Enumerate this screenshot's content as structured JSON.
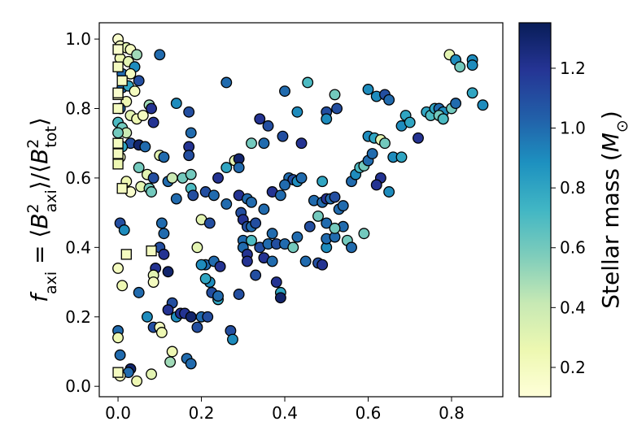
{
  "chart_data": {
    "type": "scatter",
    "ylabel": [
      {
        "text": "f",
        "style": "italic"
      },
      {
        "text": "axi",
        "pos": "sub"
      },
      {
        "text": " = ⟨"
      },
      {
        "text": "B",
        "style": "italic"
      },
      {
        "text": "2",
        "pos": "sup"
      },
      {
        "text": "axi",
        "pos": "sub"
      },
      {
        "text": "⟩/⟨"
      },
      {
        "text": "B",
        "style": "italic"
      },
      {
        "text": "2",
        "pos": "sup"
      },
      {
        "text": "tot",
        "pos": "sub"
      },
      {
        "text": "⟩"
      }
    ],
    "colorbar_label": [
      {
        "text": "Stellar mass ("
      },
      {
        "text": "M",
        "style": "italic"
      },
      {
        "text": "⊙",
        "pos": "sub"
      },
      {
        "text": ")"
      }
    ],
    "xlim": [
      -0.045,
      0.923
    ],
    "ylim": [
      -0.03,
      1.047
    ],
    "xticks": [
      {
        "value": 0,
        "label": "0.0"
      },
      0.2,
      0.4,
      0.6,
      0.8
    ],
    "yticks": [
      {
        "value": 0,
        "label": "0.0"
      },
      0.2,
      0.4,
      0.6,
      0.8,
      {
        "value": 1,
        "label": "1.0"
      }
    ],
    "clim": [
      0.102,
      1.352
    ],
    "cticks": [
      0.2,
      0.4,
      0.6,
      0.8,
      {
        "value": 1,
        "label": "1.0"
      },
      1.2
    ],
    "colormap": [
      "#ffffd9",
      "#edf8b1",
      "#c7e9b4",
      "#7fcdbb",
      "#41b6c4",
      "#1d91c0",
      "#225ea8",
      "#253494",
      "#081d58"
    ],
    "series": [
      {
        "marker": "circle",
        "x": [
          0.0,
          0.005,
          0.02,
          0.03,
          0.045,
          0.005,
          0.025,
          0.04,
          0.01,
          0.03,
          0.05,
          0.01,
          0.025,
          0.04,
          0.02,
          0.005,
          0.03,
          0.045,
          0.0,
          0.01,
          0.02,
          0.0,
          0.03,
          0.05,
          0.065,
          0.01,
          0.005,
          0.05,
          0.07,
          0.02,
          0.055,
          0.075,
          0.03,
          0.005,
          0.015,
          0.0,
          0.01,
          0.05,
          0.0,
          0.0,
          0.005,
          0.03,
          0.025,
          0.005,
          0.045,
          0.08,
          0.06,
          0.075,
          0.08,
          0.1,
          0.085,
          0.1,
          0.11,
          0.085,
          0.08,
          0.14,
          0.17,
          0.175,
          0.17,
          0.17,
          0.12,
          0.13,
          0.155,
          0.175,
          0.14,
          0.175,
          0.18,
          0.2,
          0.105,
          0.11,
          0.1,
          0.11,
          0.09,
          0.12,
          0.19,
          0.085,
          0.085,
          0.13,
          0.12,
          0.14,
          0.15,
          0.16,
          0.07,
          0.085,
          0.1,
          0.105,
          0.13,
          0.125,
          0.165,
          0.175,
          0.175,
          0.2,
          0.19,
          0.26,
          0.21,
          0.23,
          0.24,
          0.26,
          0.28,
          0.29,
          0.29,
          0.29,
          0.31,
          0.32,
          0.32,
          0.35,
          0.34,
          0.36,
          0.395,
          0.4,
          0.43,
          0.44,
          0.455,
          0.26,
          0.295,
          0.3,
          0.31,
          0.32,
          0.33,
          0.35,
          0.37,
          0.39,
          0.41,
          0.42,
          0.43,
          0.44,
          0.4,
          0.22,
          0.3,
          0.3,
          0.32,
          0.34,
          0.35,
          0.36,
          0.37,
          0.38,
          0.4,
          0.42,
          0.43,
          0.33,
          0.31,
          0.31,
          0.37,
          0.39,
          0.39,
          0.38,
          0.29,
          0.24,
          0.21,
          0.23,
          0.245,
          0.22,
          0.21,
          0.225,
          0.24,
          0.215,
          0.27,
          0.275,
          0.2,
          0.5,
          0.5,
          0.52,
          0.525,
          0.47,
          0.48,
          0.49,
          0.5,
          0.51,
          0.52,
          0.53,
          0.54,
          0.56,
          0.57,
          0.58,
          0.59,
          0.6,
          0.61,
          0.6,
          0.615,
          0.63,
          0.64,
          0.63,
          0.62,
          0.65,
          0.66,
          0.68,
          0.68,
          0.69,
          0.7,
          0.6,
          0.62,
          0.64,
          0.65,
          0.72,
          0.74,
          0.75,
          0.76,
          0.77,
          0.78,
          0.77,
          0.78,
          0.8,
          0.81,
          0.795,
          0.81,
          0.82,
          0.85,
          0.85,
          0.85,
          0.875,
          0.78,
          0.45,
          0.48,
          0.49,
          0.5,
          0.5,
          0.52,
          0.54,
          0.55,
          0.56,
          0.59,
          0.5,
          0.52,
          0.49,
          0.46
        ],
        "y": [
          1.0,
          0.98,
          0.975,
          0.97,
          0.955,
          0.945,
          0.935,
          0.92,
          0.9,
          0.9,
          0.88,
          0.86,
          0.865,
          0.85,
          0.82,
          0.8,
          0.78,
          0.77,
          0.76,
          0.745,
          0.73,
          0.73,
          0.7,
          0.695,
          0.69,
          0.69,
          0.66,
          0.63,
          0.61,
          0.59,
          0.575,
          0.57,
          0.56,
          0.47,
          0.45,
          0.34,
          0.29,
          0.27,
          0.16,
          0.14,
          0.09,
          0.05,
          0.04,
          0.03,
          0.015,
          0.035,
          0.78,
          0.81,
          0.8,
          0.955,
          0.76,
          0.665,
          0.66,
          0.6,
          0.56,
          0.815,
          0.79,
          0.73,
          0.69,
          0.665,
          0.59,
          0.6,
          0.6,
          0.61,
          0.54,
          0.57,
          0.55,
          0.48,
          0.47,
          0.44,
          0.4,
          0.38,
          0.34,
          0.33,
          0.4,
          0.32,
          0.3,
          0.24,
          0.22,
          0.2,
          0.21,
          0.21,
          0.2,
          0.17,
          0.17,
          0.155,
          0.1,
          0.07,
          0.08,
          0.065,
          0.2,
          0.2,
          0.17,
          0.875,
          0.56,
          0.55,
          0.6,
          0.63,
          0.65,
          0.655,
          0.63,
          0.55,
          0.54,
          0.53,
          0.7,
          0.7,
          0.77,
          0.75,
          0.72,
          0.85,
          0.79,
          0.7,
          0.875,
          0.525,
          0.5,
          0.48,
          0.46,
          0.46,
          0.47,
          0.51,
          0.56,
          0.55,
          0.6,
          0.595,
          0.59,
          0.6,
          0.58,
          0.47,
          0.42,
          0.4,
          0.42,
          0.4,
          0.37,
          0.41,
          0.44,
          0.41,
          0.41,
          0.4,
          0.43,
          0.32,
          0.38,
          0.36,
          0.36,
          0.27,
          0.255,
          0.3,
          0.265,
          0.25,
          0.35,
          0.36,
          0.345,
          0.3,
          0.31,
          0.27,
          0.26,
          0.2,
          0.16,
          0.135,
          0.35,
          0.79,
          0.77,
          0.84,
          0.8,
          0.535,
          0.49,
          0.53,
          0.54,
          0.54,
          0.545,
          0.51,
          0.52,
          0.59,
          0.61,
          0.63,
          0.635,
          0.65,
          0.67,
          0.72,
          0.715,
          0.71,
          0.7,
          0.6,
          0.58,
          0.56,
          0.66,
          0.66,
          0.75,
          0.78,
          0.76,
          0.855,
          0.835,
          0.84,
          0.825,
          0.715,
          0.79,
          0.78,
          0.8,
          0.8,
          0.79,
          0.78,
          0.77,
          0.8,
          0.815,
          0.955,
          0.94,
          0.92,
          0.94,
          0.925,
          0.845,
          0.81,
          0.77,
          0.36,
          0.355,
          0.35,
          0.4,
          0.425,
          0.43,
          0.46,
          0.42,
          0.4,
          0.44,
          0.47,
          0.455,
          0.59,
          0.46
        ],
        "c": [
          0.15,
          0.2,
          0.3,
          0.2,
          0.5,
          0.25,
          0.3,
          0.9,
          1.0,
          0.2,
          1.1,
          1.0,
          0.8,
          0.2,
          0.25,
          1.0,
          0.3,
          0.25,
          0.7,
          0.6,
          0.4,
          0.6,
          1.1,
          1.3,
          1.0,
          0.8,
          0.2,
          0.6,
          0.3,
          0.25,
          0.3,
          0.6,
          0.15,
          1.1,
          0.9,
          0.2,
          0.25,
          1.0,
          1.0,
          0.25,
          1.0,
          1.3,
          1.0,
          0.2,
          0.25,
          0.3,
          0.2,
          0.5,
          1.2,
          1.0,
          1.2,
          0.3,
          1.0,
          1.1,
          0.6,
          0.9,
          1.1,
          1.0,
          1.2,
          1.1,
          1.0,
          0.4,
          0.6,
          0.6,
          1.0,
          0.7,
          1.1,
          0.3,
          1.0,
          1.0,
          1.1,
          1.2,
          1.2,
          1.3,
          0.3,
          0.3,
          0.2,
          1.1,
          1.2,
          0.9,
          1.2,
          1.2,
          0.9,
          1.1,
          0.2,
          0.25,
          0.25,
          0.5,
          1.0,
          1.0,
          1.3,
          1.0,
          1.1,
          1.0,
          1.1,
          1.0,
          1.2,
          0.8,
          0.3,
          1.3,
          1.0,
          1.2,
          1.0,
          1.0,
          0.6,
          1.0,
          1.2,
          1.1,
          1.1,
          1.0,
          0.9,
          1.2,
          0.7,
          1.0,
          1.1,
          1.2,
          1.1,
          1.0,
          1.1,
          1.0,
          1.2,
          1.0,
          1.0,
          1.1,
          0.9,
          1.0,
          1.0,
          1.1,
          1.0,
          1.0,
          0.7,
          1.1,
          1.2,
          1.0,
          1.0,
          1.1,
          1.0,
          0.6,
          1.0,
          1.1,
          1.2,
          1.2,
          1.0,
          0.8,
          1.3,
          1.2,
          1.1,
          0.8,
          1.0,
          1.0,
          1.2,
          0.9,
          0.8,
          1.1,
          1.0,
          1.1,
          1.1,
          0.9,
          0.9,
          1.1,
          0.9,
          0.6,
          1.1,
          1.0,
          0.6,
          1.0,
          1.2,
          1.0,
          1.1,
          1.0,
          1.0,
          1.0,
          0.9,
          0.7,
          0.6,
          1.0,
          1.0,
          0.9,
          0.8,
          0.3,
          0.6,
          1.2,
          1.2,
          0.9,
          0.9,
          0.8,
          0.9,
          0.8,
          0.8,
          0.9,
          0.9,
          1.1,
          1.0,
          1.2,
          0.8,
          0.7,
          0.8,
          1.0,
          0.9,
          0.6,
          0.6,
          0.6,
          1.0,
          0.3,
          0.9,
          0.6,
          0.9,
          0.9,
          0.8,
          0.9,
          0.7,
          1.0,
          1.1,
          1.2,
          0.9,
          1.0,
          1.0,
          1.0,
          0.6,
          1.0,
          0.6,
          1.0,
          0.6,
          0.8,
          1.1
        ]
      },
      {
        "marker": "square",
        "x": [
          0.0,
          0.0,
          0.01,
          0.0,
          0.0,
          0.0,
          0.0,
          0.0,
          0.01,
          0.02,
          0.08,
          0.0,
          0.0
        ],
        "y": [
          0.97,
          0.92,
          0.88,
          0.84,
          0.8,
          0.7,
          0.67,
          0.64,
          0.57,
          0.38,
          0.39,
          0.04,
          0.845
        ],
        "c": [
          0.15,
          0.2,
          0.2,
          0.2,
          0.2,
          0.2,
          0.2,
          0.25,
          0.2,
          0.2,
          0.2,
          0.2,
          0.15
        ]
      }
    ]
  }
}
